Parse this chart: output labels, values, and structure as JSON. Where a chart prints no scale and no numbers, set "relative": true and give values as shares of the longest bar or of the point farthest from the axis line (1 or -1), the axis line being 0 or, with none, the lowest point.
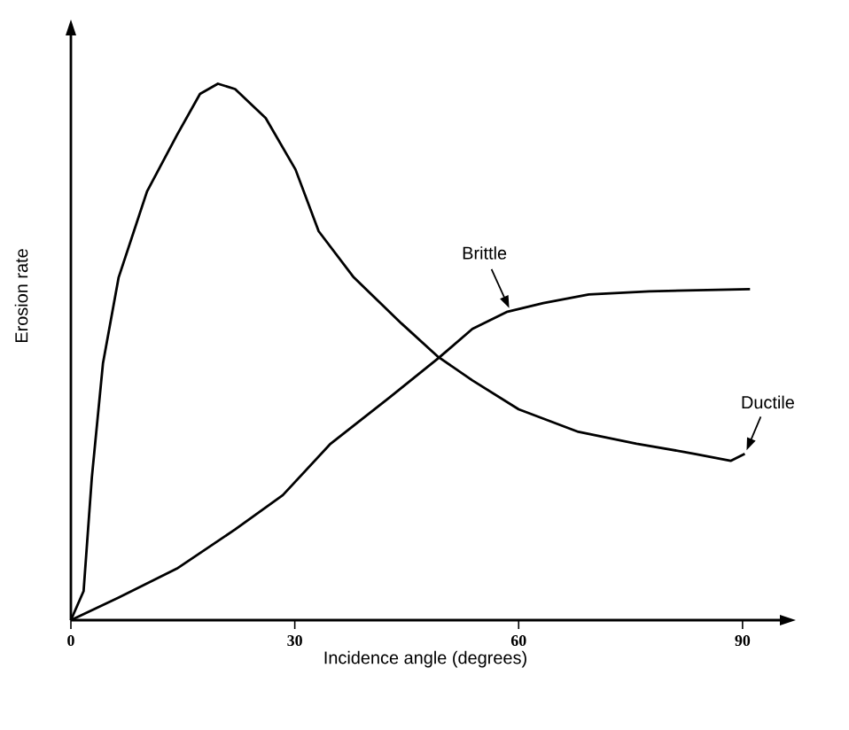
{
  "chart_data": {
    "type": "line",
    "relative": true,
    "xlabel": "Incidence angle (degrees)",
    "ylabel": "Erosion rate",
    "xlim": [
      0,
      95
    ],
    "xticks": [
      0,
      30,
      60,
      90
    ],
    "marker": "none",
    "line_style": "solid",
    "tick_labels": "x",
    "series": [
      {
        "name": "Brittle",
        "color": "#000000",
        "x": [
          0,
          6.4,
          14.2,
          22.0,
          28.4,
          34.8,
          42.7,
          49.3,
          53.8,
          58.5,
          63.3,
          69.4,
          77.5,
          91.0
        ],
        "values": [
          0,
          0.042,
          0.096,
          0.169,
          0.233,
          0.329,
          0.415,
          0.489,
          0.543,
          0.575,
          0.591,
          0.607,
          0.613,
          0.617
        ]
      },
      {
        "name": "Ductile",
        "color": "#000000",
        "x": [
          0,
          1.7,
          2.8,
          4.3,
          6.4,
          10.2,
          14.2,
          17.3,
          19.7,
          22.0,
          26.1,
          30.1,
          33.2,
          37.9,
          44.3,
          49.1,
          53.8,
          60.0,
          68.0,
          75.8,
          83.6,
          88.4,
          90.3
        ],
        "values": [
          0,
          0.054,
          0.265,
          0.479,
          0.639,
          0.799,
          0.904,
          0.981,
          1,
          0.99,
          0.936,
          0.84,
          0.725,
          0.639,
          0.553,
          0.492,
          0.447,
          0.393,
          0.351,
          0.329,
          0.31,
          0.297,
          0.31
        ]
      }
    ]
  }
}
